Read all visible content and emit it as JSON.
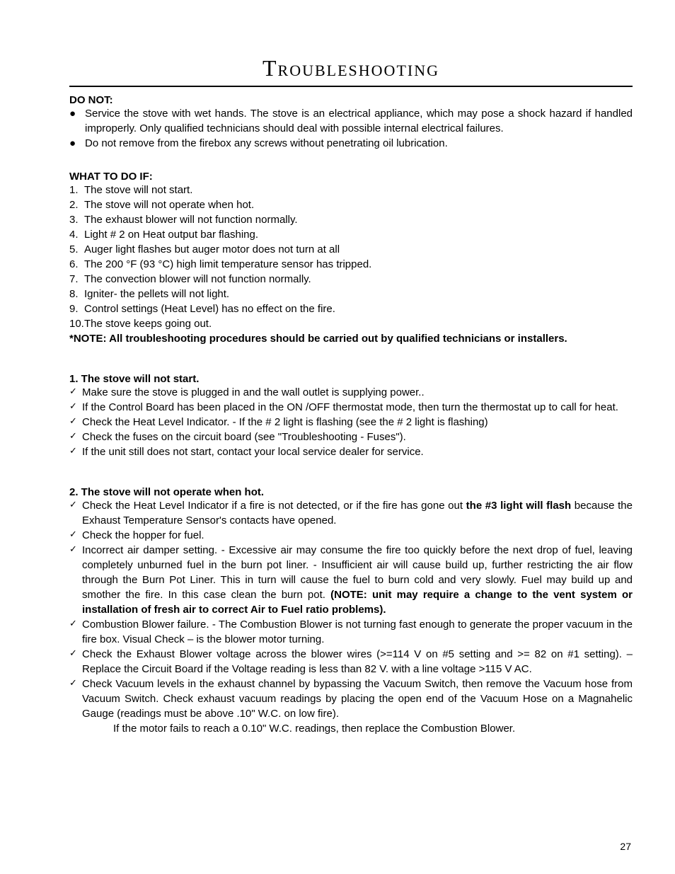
{
  "title": "Troubleshooting",
  "donot_head": "DO NOT:",
  "donot_items": [
    "Service the stove with wet hands.  The stove is an electrical appliance, which may pose a shock hazard if handled improperly. Only qualified technicians should deal with possible internal electrical failures.",
    "Do not remove from the firebox any screws without penetrating oil lubrication."
  ],
  "what_head": "WHAT TO DO IF:",
  "what_items": [
    "The stove will not start.",
    "The stove will not operate when hot.",
    "The exhaust blower will not function normally.",
    "Light # 2 on Heat output bar flashing.",
    "Auger light flashes but auger motor does not turn at all",
    "The 200 °F (93 °C) high limit temperature sensor has tripped.",
    "The convection blower will not function normally.",
    "Igniter- the pellets will not light.",
    "Control settings (Heat Level) has no effect on the fire.",
    "The stove keeps going out."
  ],
  "note_bold": "*NOTE:  All troubleshooting procedures should be carried out by qualified technicians or installers.",
  "sec1_head": "1. The stove will not start.",
  "sec1_items": [
    "Make sure the stove is plugged in and the wall outlet is supplying power..",
    "If the Control Board has been placed in the ON /OFF thermostat mode, then turn the thermostat up to call for heat.",
    "Check the Heat Level Indicator. - If the # 2 light is flashing (see the # 2 light is flashing)",
    "Check the fuses on the circuit board (see \"Troubleshooting - Fuses\").",
    "If the unit still does not start, contact your local service dealer for service."
  ],
  "sec2_head": "2. The stove will not operate when hot.",
  "sec2_item1_a": "Check the Heat Level Indicator if a fire is not detected, or if the fire has gone out ",
  "sec2_item1_b": "the #3 light will flash",
  "sec2_item1_c": " because the Exhaust Temperature Sensor's contacts have opened.",
  "sec2_item2": "Check the hopper for fuel.",
  "sec2_item3_a": "Incorrect air damper setting. - Excessive air may consume the fire too quickly before the next drop of fuel, leaving completely unburned fuel in the burn pot liner. - Insufficient air will cause build up, further restricting the air flow through the Burn Pot Liner.  This in turn will cause the fuel to burn cold and very slowly.  Fuel may build up and smother the fire. In this case clean the burn pot. ",
  "sec2_item3_b": "(NOTE: unit may require a change to the vent system or installation of fresh air to correct Air to Fuel ratio problems).",
  "sec2_item4": "Combustion Blower failure. - The Combustion Blower is not turning fast enough to generate the proper vacuum in the fire box. Visual Check – is the blower motor turning.",
  "sec2_item5": "Check the Exhaust Blower voltage across the blower wires (>=114 V on #5 setting and >= 82 on #1 setting). – Replace the Circuit Board if the Voltage reading is less than 82 V. with a line voltage >115 V AC.",
  "sec2_item6": "Check Vacuum levels in the exhaust channel by bypassing the Vacuum Switch, then remove the Vacuum hose from Vacuum Switch.  Check exhaust vacuum readings by placing the open end of the Vacuum Hose on a Magnahelic Gauge (readings must be above .10\" W.C. on low fire).",
  "sec2_indent": "If the motor fails to reach a 0.10\" W.C. readings, then replace the Combustion Blower.",
  "page_number": "27"
}
